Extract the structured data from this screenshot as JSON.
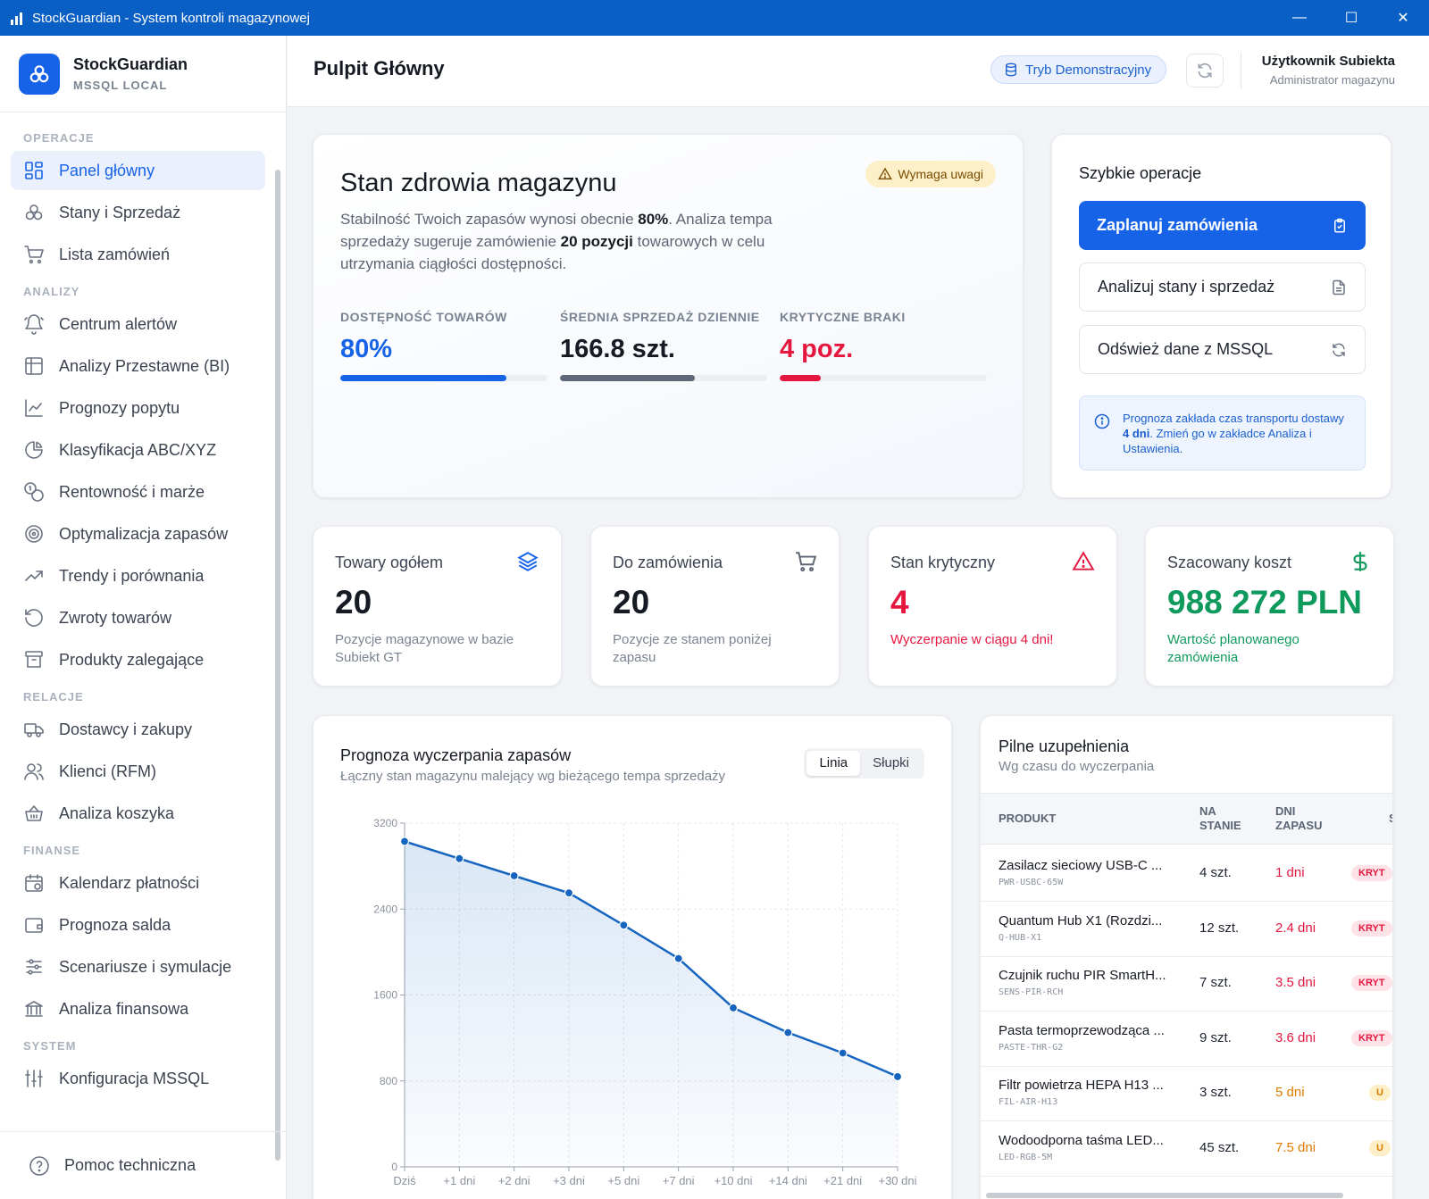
{
  "window": {
    "title": "StockGuardian - System kontroli magazynowej",
    "controls": [
      "—",
      "☐",
      "✕"
    ]
  },
  "brand": {
    "name": "StockGuardian",
    "subtitle": "MSSQL LOCAL"
  },
  "sidebar": {
    "sections": [
      {
        "title": "OPERACJE",
        "items": [
          {
            "label": "Panel główny",
            "icon": "grid-icon",
            "active": true
          },
          {
            "label": "Stany i Sprzedaż",
            "icon": "boxes-icon"
          },
          {
            "label": "Lista zamówień",
            "icon": "cart-icon"
          }
        ]
      },
      {
        "title": "ANALIZY",
        "items": [
          {
            "label": "Centrum alertów",
            "icon": "bell-icon"
          },
          {
            "label": "Analizy Przestawne (BI)",
            "icon": "table-icon"
          },
          {
            "label": "Prognozy popytu",
            "icon": "line-chart-icon"
          },
          {
            "label": "Klasyfikacja ABC/XYZ",
            "icon": "pie-chart-icon"
          },
          {
            "label": "Rentowność i marże",
            "icon": "coins-icon"
          },
          {
            "label": "Optymalizacja zapasów",
            "icon": "target-icon"
          },
          {
            "label": "Trendy i porównania",
            "icon": "trending-up-icon"
          },
          {
            "label": "Zwroty towarów",
            "icon": "undo-icon"
          },
          {
            "label": "Produkty zalegające",
            "icon": "archive-icon"
          }
        ]
      },
      {
        "title": "RELACJE",
        "items": [
          {
            "label": "Dostawcy i zakupy",
            "icon": "truck-icon"
          },
          {
            "label": "Klienci (RFM)",
            "icon": "users-icon"
          },
          {
            "label": "Analiza koszyka",
            "icon": "basket-icon"
          }
        ]
      },
      {
        "title": "FINANSE",
        "items": [
          {
            "label": "Kalendarz płatności",
            "icon": "calendar-icon"
          },
          {
            "label": "Prognoza salda",
            "icon": "wallet-icon"
          },
          {
            "label": "Scenariusze i symulacje",
            "icon": "sliders-icon"
          },
          {
            "label": "Analiza finansowa",
            "icon": "bank-icon"
          }
        ]
      },
      {
        "title": "SYSTEM",
        "items": [
          {
            "label": "Konfiguracja MSSQL",
            "icon": "settings-sliders-icon"
          }
        ]
      }
    ],
    "footer": "Pomoc techniczna"
  },
  "header": {
    "title": "Pulpit Główny",
    "demo_badge": "Tryb Demonstracyjny",
    "user_name": "Użytkownik Subiekta",
    "user_role": "Administrator magazynu"
  },
  "health": {
    "title": "Stan zdrowia magazynu",
    "badge": "Wymaga uwagi",
    "desc_1": "Stabilność Twoich zapasów wynosi obecnie ",
    "desc_pct": "80%",
    "desc_2": ". Analiza tempa sprzedaży sugeruje zamówienie ",
    "desc_count": "20 pozycji",
    "desc_3": " towarowych w celu utrzymania ciągłości dostępności.",
    "kpis": [
      {
        "label": "DOSTĘPNOŚĆ TOWARÓW",
        "value": "80%",
        "progress": 0.8,
        "color": "#1763e8"
      },
      {
        "label": "ŚREDNIA SPRZEDAŻ DZIENNIE",
        "value": "166.8 szt.",
        "progress": 0.65,
        "color": "#5f6878"
      },
      {
        "label": "KRYTYCZNE BRAKI",
        "value": "4 poz.",
        "progress": 0.2,
        "color": "#e5173f"
      }
    ]
  },
  "quick": {
    "title": "Szybkie operacje",
    "buttons": [
      {
        "label": "Zaplanuj zamówienia",
        "icon": "clipboard-icon"
      },
      {
        "label": "Analizuj stany i sprzedaż",
        "icon": "document-icon"
      },
      {
        "label": "Odśwież dane z MSSQL",
        "icon": "refresh-icon"
      }
    ],
    "info_1": "Prognoza zakłada czas transportu dostawy ",
    "info_days": "4 dni",
    "info_2": ". Zmień go w zakładce Analiza i Ustawienia."
  },
  "stats": [
    {
      "label": "Towary ogółem",
      "value": "20",
      "desc": "Pozycje magazynowe w bazie Subiekt GT",
      "icon": "layers-icon",
      "value_color": "#161a23",
      "desc_color": "#7a8391"
    },
    {
      "label": "Do zamówienia",
      "value": "20",
      "desc": "Pozycje ze stanem poniżej zapasu",
      "icon": "cart-icon",
      "value_color": "#161a23",
      "desc_color": "#7a8391"
    },
    {
      "label": "Stan krytyczny",
      "value": "4",
      "desc": "Wyczerpanie w ciągu 4 dni!",
      "icon": "warning-icon",
      "value_color": "#e5173f",
      "desc_color": "#e5173f"
    },
    {
      "label": "Szacowany koszt",
      "value": "988 272 PLN",
      "desc": "Wartość planowanego zamówienia",
      "icon": "dollar-icon",
      "value_color": "#0e9a5c",
      "desc_color": "#0e9a5c"
    }
  ],
  "chart": {
    "title": "Prognoza wyczerpania zapasów",
    "subtitle": "Łączny stan magazynu malejący wg bieżącego tempa sprzedaży",
    "toggle": [
      "Linia",
      "Słupki"
    ]
  },
  "chart_data": {
    "type": "line",
    "categories": [
      "Dziś",
      "+1 dni",
      "+2 dni",
      "+3 dni",
      "+5 dni",
      "+7 dni",
      "+10 dni",
      "+14 dni",
      "+21 dni",
      "+30 dni"
    ],
    "values": [
      3030,
      2870,
      2710,
      2550,
      2250,
      1940,
      1480,
      1250,
      1060,
      840
    ],
    "ylim": [
      0,
      3200
    ],
    "yticks": [
      0,
      800,
      1600,
      2400,
      3200
    ],
    "grid": true,
    "line_color": "#1565c0"
  },
  "table": {
    "title": "Pilne uzupełnienia",
    "subtitle": "Wg czasu do wyczerpania",
    "columns": [
      "PRODUKT",
      "NA STANIE",
      "DNI ZAPASU",
      "S"
    ],
    "rows": [
      {
        "name": "Zasilacz sieciowy USB-C ...",
        "sku": "PWR-USBC-65W",
        "qty": "4 szt.",
        "days": "1 dni",
        "badge": "KRYT",
        "color": "#e5173f",
        "badge_bg": "#fde3e7"
      },
      {
        "name": "Quantum Hub X1 (Rozdzi...",
        "sku": "Q-HUB-X1",
        "qty": "12 szt.",
        "days": "2.4 dni",
        "badge": "KRYT",
        "color": "#e5173f",
        "badge_bg": "#fde3e7"
      },
      {
        "name": "Czujnik ruchu PIR SmartH...",
        "sku": "SENS-PIR-RCH",
        "qty": "7 szt.",
        "days": "3.5 dni",
        "badge": "KRYT",
        "color": "#e5173f",
        "badge_bg": "#fde3e7"
      },
      {
        "name": "Pasta termoprzewodząca ...",
        "sku": "PASTE-THR-G2",
        "qty": "9 szt.",
        "days": "3.6 dni",
        "badge": "KRYT",
        "color": "#e5173f",
        "badge_bg": "#fde3e7"
      },
      {
        "name": "Filtr powietrza HEPA H13 ...",
        "sku": "FIL-AIR-H13",
        "qty": "3 szt.",
        "days": "5 dni",
        "badge": "U",
        "color": "#e07b00",
        "badge_bg": "#fdf0c8"
      },
      {
        "name": "Wodoodporna taśma LED...",
        "sku": "LED-RGB-5M",
        "qty": "45 szt.",
        "days": "7.5 dni",
        "badge": "U",
        "color": "#e07b00",
        "badge_bg": "#fdf0c8"
      }
    ]
  }
}
